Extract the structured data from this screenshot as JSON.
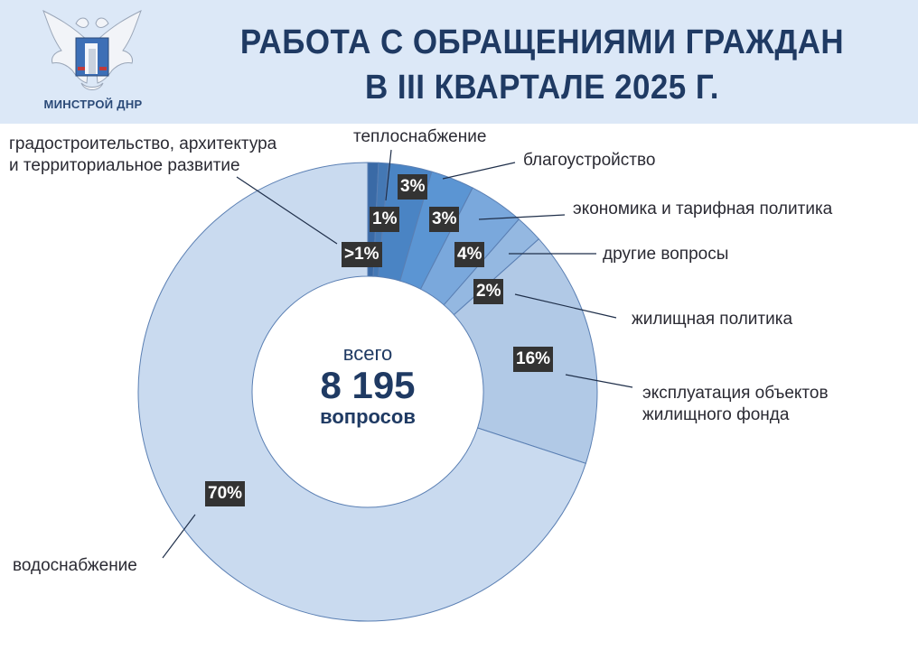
{
  "header": {
    "org_caption": "МИНСТРОЙ ДНР",
    "title_line1": "РАБОТА С ОБРАЩЕНИЯМИ ГРАЖДАН",
    "title_line2": "В III КВАРТАЛЕ 2025 Г.",
    "logo_icon": "double-headed-eagle-emblem-icon"
  },
  "center": {
    "top": "всего",
    "total": "8 195",
    "bottom": "вопросов"
  },
  "colors": {
    "header_bg": "#dce8f7",
    "title": "#1f3a63",
    "badge_bg": "#333333"
  },
  "chart_data": {
    "type": "pie",
    "subtype": "donut",
    "title": "Работа с обращениями граждан в III квартале 2025 г.",
    "total": 8195,
    "total_label": "всего 8 195 вопросов",
    "legend": "callout labels",
    "series": [
      {
        "name": "градостроительство, архитектура и территориальное развитие",
        "label": ">1%",
        "value": 0.8,
        "color": "#3a6aa6"
      },
      {
        "name": "теплоснабжение",
        "label": "1%",
        "value": 1,
        "color": "#4478b4"
      },
      {
        "name": "благоустройство",
        "label": "3%",
        "value": 3,
        "color": "#4a84c4"
      },
      {
        "name": "экономика и тарифная политика",
        "label": "3%",
        "value": 3,
        "color": "#5b95d3"
      },
      {
        "name": "другие вопросы",
        "label": "4%",
        "value": 4,
        "color": "#7aa8dc"
      },
      {
        "name": "жилищная политика",
        "label": "2%",
        "value": 2,
        "color": "#94b8e1"
      },
      {
        "name": "эксплуатация объектов жилищного фонда",
        "label": "16%",
        "value": 16,
        "color": "#b1c9e6"
      },
      {
        "name": "водоснабжение",
        "label": "70%",
        "value": 70,
        "color": "#c9daef"
      }
    ]
  },
  "labels": {
    "grad_line1": "градостроительство, архитектура",
    "grad_line2": "и территориальное развитие",
    "teplo": "теплоснабжение",
    "blago": "благоустройство",
    "econ": "экономика и тарифная политика",
    "drugie": "другие вопросы",
    "zhil": "жилищная политика",
    "expl_line1": "эксплуатация объектов",
    "expl_line2": "жилищного фонда",
    "vodo": "водоснабжение"
  },
  "badges": {
    "grad": ">1%",
    "teplo": "1%",
    "blago": "3%",
    "econ": "3%",
    "drugie": "4%",
    "zhil": "2%",
    "expl": "16%",
    "vodo": "70%"
  }
}
